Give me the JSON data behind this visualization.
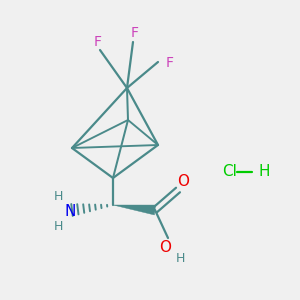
{
  "background_color": "#f0f0f0",
  "atom_colors": {
    "C": "#4a8a8a",
    "N": "#0000ee",
    "O": "#ee0000",
    "F": "#cc44bb",
    "H": "#4a8a8a",
    "Cl": "#00cc00"
  },
  "bond_color": "#4a8a8a",
  "bond_width": 1.6
}
